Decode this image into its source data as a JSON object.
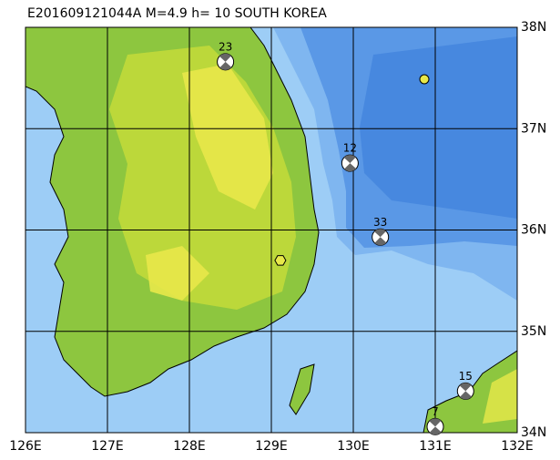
{
  "map": {
    "title": "E201609121044A M=4.9 h= 10 SOUTH KOREA",
    "lonlim": [
      126,
      132
    ],
    "latlim": [
      34,
      38
    ],
    "lonticks": [
      {
        "value": 126,
        "label": "126E"
      },
      {
        "value": 127,
        "label": "127E"
      },
      {
        "value": 128,
        "label": "128E"
      },
      {
        "value": 129,
        "label": "129E"
      },
      {
        "value": 130,
        "label": "130E"
      },
      {
        "value": 131,
        "label": "131E"
      },
      {
        "value": 132,
        "label": "132E"
      }
    ],
    "latticks": [
      {
        "value": 38,
        "label": "38N"
      },
      {
        "value": 37,
        "label": "37N"
      },
      {
        "value": 36,
        "label": "36N"
      },
      {
        "value": 35,
        "label": "35N"
      },
      {
        "value": 34,
        "label": "34N"
      }
    ],
    "epicenter": {
      "lon": 129.11,
      "lat": 35.7
    },
    "stations": [
      {
        "label": "23",
        "lon": 128.44,
        "lat": 37.66
      },
      {
        "label": "12",
        "lon": 129.96,
        "lat": 36.66
      },
      {
        "label": "33",
        "lon": 130.33,
        "lat": 35.93
      },
      {
        "label": "15",
        "lon": 131.37,
        "lat": 34.41
      },
      {
        "label": "7",
        "lon": 131.0,
        "lat": 34.06
      }
    ]
  }
}
